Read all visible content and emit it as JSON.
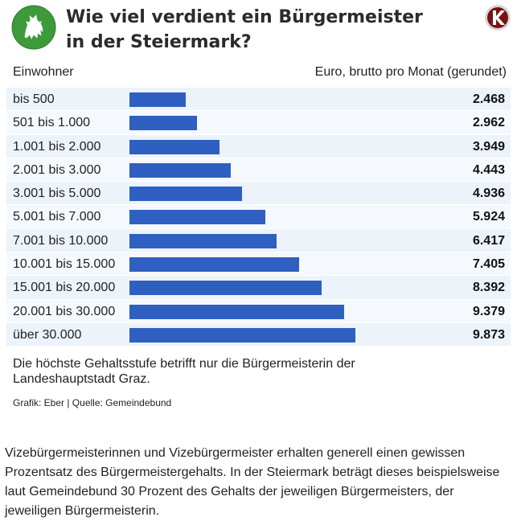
{
  "header": {
    "title": "Wie viel verdient ein Bürgermeister in der Steiermark?",
    "logo_icon": "styria-coat-of-arms-icon",
    "brand_icon": "publisher-brand-icon"
  },
  "chart_data": {
    "type": "bar",
    "orientation": "horizontal",
    "title": "Wie viel verdient ein Bürgermeister in der Steiermark?",
    "xlabel": "Euro, brutto pro Monat (gerundet)",
    "ylabel": "Einwohner",
    "categories": [
      "bis 500",
      "501 bis 1.000",
      "1.001 bis 2.000",
      "2.001 bis 3.000",
      "3.001 bis 5.000",
      "5.001 bis 7.000",
      "7.001 bis 10.000",
      "10.001 bis 15.000",
      "15.001 bis 20.000",
      "20.001 bis 30.000",
      "über 30.000"
    ],
    "values": [
      2468,
      2962,
      3949,
      4443,
      4936,
      5924,
      6417,
      7405,
      8392,
      9379,
      9873
    ],
    "value_labels": [
      "2.468",
      "2.962",
      "3.949",
      "4.443",
      "4.936",
      "5.924",
      "6.417",
      "7.405",
      "8.392",
      "9.379",
      "9.873"
    ],
    "bar_color": "#2f5fc1",
    "row_colors": [
      "#ecf3fb",
      "#f5f9fd"
    ]
  },
  "note": "Die höchste Gehaltsstufe betrifft nur die Bürgermeisterin der Landeshauptstadt Graz.",
  "source": "Grafik: Eber | Quelle: Gemeindebund",
  "paragraph": "Vizebürgermeisterinnen und Vizebürgermeister erhalten generell einen gewissen Prozentsatz des Bürgermeistergehalts. In der Steiermark beträgt dieses beispielsweise laut Gemeindebund 30 Prozent des Gehalts der jeweiligen Bürgermeisters, der jeweiligen Bürgermeisterin."
}
